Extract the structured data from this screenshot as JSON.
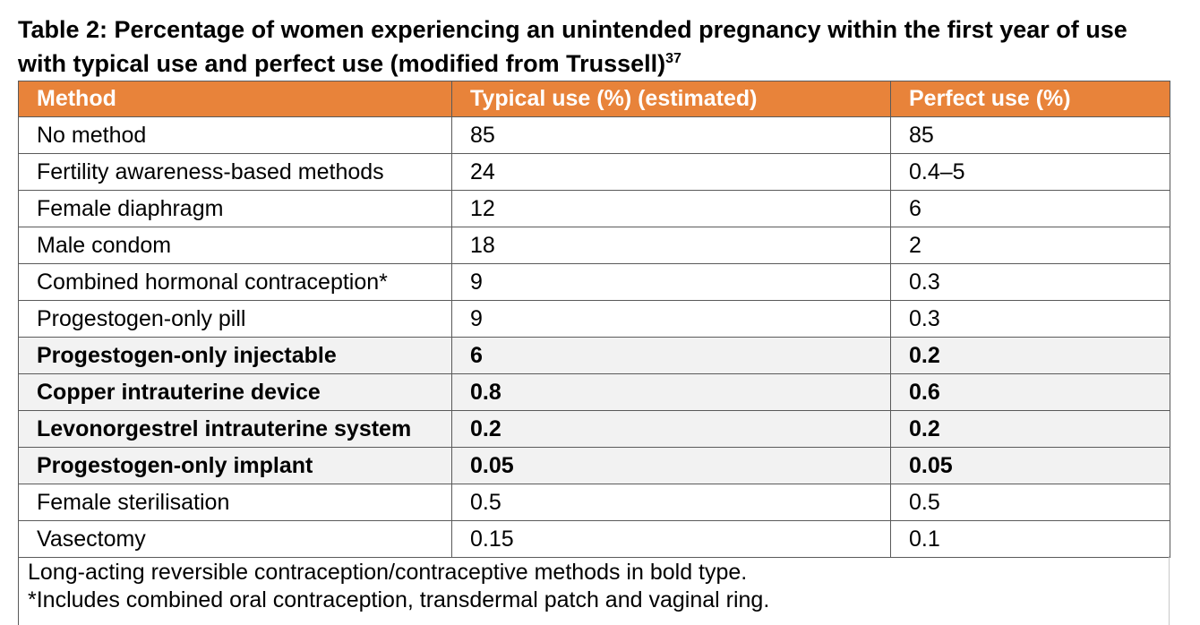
{
  "title": {
    "text": "Table 2: Percentage of women experiencing an unintended pregnancy within the first year of use with typical use and perfect use (modified from Trussell)",
    "superscript": "37"
  },
  "table": {
    "header_color": "#e8833a",
    "columns": [
      "Method",
      "Typical use (%) (estimated)",
      "Perfect use (%)"
    ],
    "rows": [
      {
        "method": "No method",
        "typical": "85",
        "perfect": "85",
        "larc": false
      },
      {
        "method": "Fertility awareness-based methods",
        "typical": "24",
        "perfect": "0.4–5",
        "larc": false
      },
      {
        "method": "Female diaphragm",
        "typical": "12",
        "perfect": "6",
        "larc": false
      },
      {
        "method": "Male condom",
        "typical": "18",
        "perfect": "2",
        "larc": false
      },
      {
        "method": "Combined hormonal contraception*",
        "typical": "9",
        "perfect": "0.3",
        "larc": false
      },
      {
        "method": "Progestogen-only pill",
        "typical": "9",
        "perfect": "0.3",
        "larc": false
      },
      {
        "method": "Progestogen-only injectable",
        "typical": "6",
        "perfect": "0.2",
        "larc": true
      },
      {
        "method": "Copper intrauterine device",
        "typical": "0.8",
        "perfect": "0.6",
        "larc": true
      },
      {
        "method": "Levonorgestrel intrauterine system",
        "typical": "0.2",
        "perfect": "0.2",
        "larc": true
      },
      {
        "method": "Progestogen-only implant",
        "typical": "0.05",
        "perfect": "0.05",
        "larc": true
      },
      {
        "method": "Female sterilisation",
        "typical": "0.5",
        "perfect": "0.5",
        "larc": false
      },
      {
        "method": "Vasectomy",
        "typical": "0.15",
        "perfect": "0.1",
        "larc": false
      }
    ]
  },
  "footnotes": [
    "Long-acting reversible contraception/contraceptive methods in bold type.",
    "*Includes combined oral contraception, transdermal patch and vaginal ring."
  ]
}
